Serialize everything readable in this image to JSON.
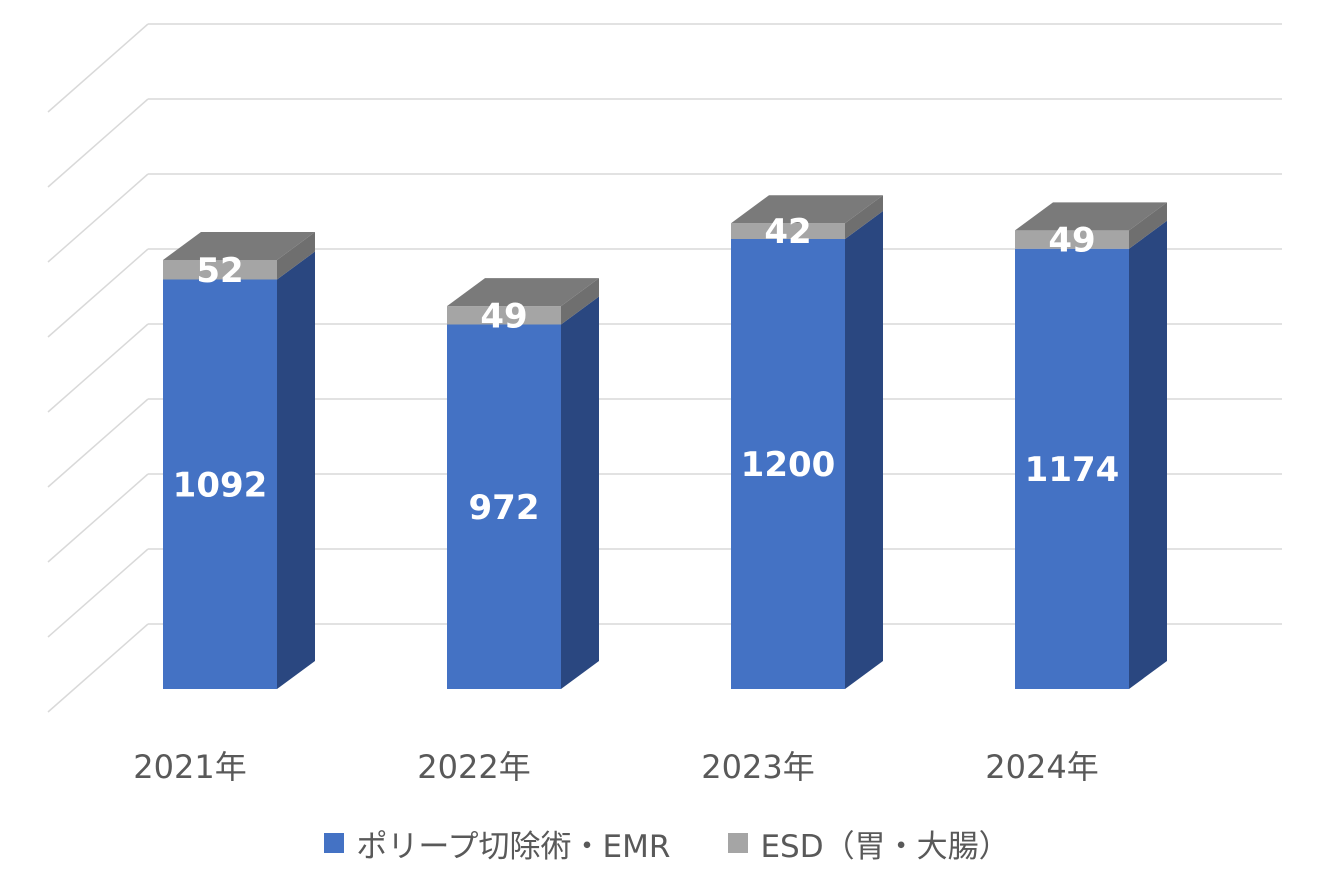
{
  "chart_data": {
    "type": "bar",
    "stacked": true,
    "three_d": true,
    "categories": [
      "2021年",
      "2022年",
      "2023年",
      "2024年"
    ],
    "series": [
      {
        "name": "ポリープ切除術・EMR",
        "values": [
          1092,
          972,
          1200,
          1174
        ],
        "color": "#4472c4"
      },
      {
        "name": "ESD（胃・大腸）",
        "values": [
          52,
          49,
          42,
          49
        ],
        "color": "#a5a5a5"
      }
    ],
    "ylim": [
      0,
      1600
    ],
    "grid": true,
    "legend": "bottom",
    "data_labels": true
  }
}
